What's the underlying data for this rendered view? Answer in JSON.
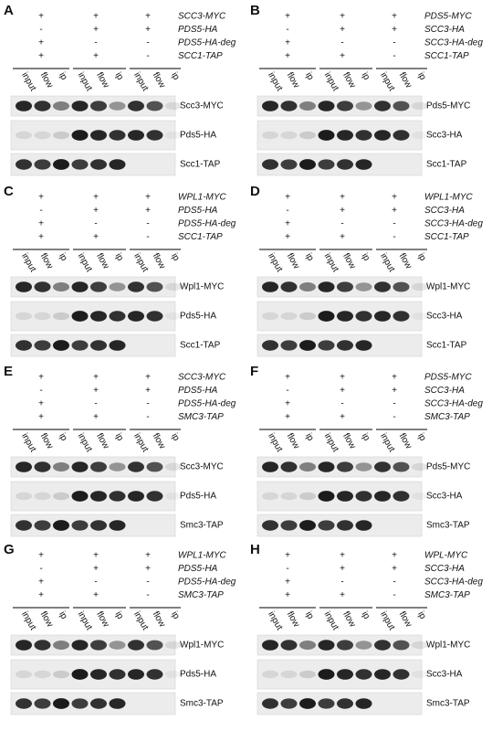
{
  "panels": [
    {
      "letter": "A",
      "rows": [
        {
          "signs": [
            "+",
            "+",
            "+"
          ],
          "label": "SCC3-MYC"
        },
        {
          "signs": [
            "-",
            "+",
            "+"
          ],
          "label": "PDS5-HA"
        },
        {
          "signs": [
            "+",
            "-",
            "-"
          ],
          "label": "PDS5-HA-deg"
        },
        {
          "signs": [
            "+",
            "+",
            "-"
          ],
          "label": "SCC1-TAP"
        }
      ],
      "lanes": [
        "input",
        "flow",
        "ip",
        "input",
        "flow",
        "ip",
        "input",
        "flow",
        "ip"
      ],
      "blots": [
        "Scc3-MYC",
        "Pds5-HA",
        "Scc1-TAP"
      ]
    },
    {
      "letter": "B",
      "rows": [
        {
          "signs": [
            "+",
            "+",
            "+"
          ],
          "label": "PDS5-MYC"
        },
        {
          "signs": [
            "-",
            "+",
            "+"
          ],
          "label": "SCC3-HA"
        },
        {
          "signs": [
            "+",
            "-",
            "-"
          ],
          "label": "SCC3-HA-deg"
        },
        {
          "signs": [
            "+",
            "+",
            "-"
          ],
          "label": "SCC1-TAP"
        }
      ],
      "lanes": [
        "input",
        "flow",
        "ip",
        "input",
        "flow",
        "ip",
        "input",
        "flow",
        "ip"
      ],
      "blots": [
        "Pds5-MYC",
        "Scc3-HA",
        "Scc1-TAP"
      ]
    },
    {
      "letter": "C",
      "rows": [
        {
          "signs": [
            "+",
            "+",
            "+"
          ],
          "label": "WPL1-MYC"
        },
        {
          "signs": [
            "-",
            "+",
            "+"
          ],
          "label": "PDS5-HA"
        },
        {
          "signs": [
            "+",
            "-",
            "-"
          ],
          "label": "PDS5-HA-deg"
        },
        {
          "signs": [
            "+",
            "+",
            "-"
          ],
          "label": "SCC1-TAP"
        }
      ],
      "lanes": [
        "input",
        "flow",
        "ip",
        "input",
        "flow",
        "ip",
        "input",
        "flow",
        "ip"
      ],
      "blots": [
        "Wpl1-MYC",
        "Pds5-HA",
        "Scc1-TAP"
      ]
    },
    {
      "letter": "D",
      "rows": [
        {
          "signs": [
            "+",
            "+",
            "+"
          ],
          "label": "WPL1-MYC"
        },
        {
          "signs": [
            "-",
            "+",
            "+"
          ],
          "label": "SCC3-HA"
        },
        {
          "signs": [
            "+",
            "-",
            "-"
          ],
          "label": "SCC3-HA-deg"
        },
        {
          "signs": [
            "+",
            "+",
            "-"
          ],
          "label": "SCC1-TAP"
        }
      ],
      "lanes": [
        "input",
        "flow",
        "ip",
        "input",
        "flow",
        "ip",
        "input",
        "flow",
        "ip"
      ],
      "blots": [
        "Wpl1-MYC",
        "Scc3-HA",
        "Scc1-TAP"
      ]
    },
    {
      "letter": "E",
      "rows": [
        {
          "signs": [
            "+",
            "+",
            "+"
          ],
          "label": "SCC3-MYC"
        },
        {
          "signs": [
            "-",
            "+",
            "+"
          ],
          "label": "PDS5-HA"
        },
        {
          "signs": [
            "+",
            "-",
            "-"
          ],
          "label": "PDS5-HA-deg"
        },
        {
          "signs": [
            "+",
            "+",
            "-"
          ],
          "label": "SMC3-TAP"
        }
      ],
      "lanes": [
        "input",
        "flow",
        "ip",
        "input",
        "flow",
        "ip",
        "input",
        "flow",
        "ip"
      ],
      "blots": [
        "Scc3-MYC",
        "Pds5-HA",
        "Smc3-TAP"
      ]
    },
    {
      "letter": "F",
      "rows": [
        {
          "signs": [
            "+",
            "+",
            "+"
          ],
          "label": "PDS5-MYC"
        },
        {
          "signs": [
            "-",
            "+",
            "+"
          ],
          "label": "SCC3-HA"
        },
        {
          "signs": [
            "+",
            "-",
            "-"
          ],
          "label": "SCC3-HA-deg"
        },
        {
          "signs": [
            "+",
            "+",
            "-"
          ],
          "label": "SMC3-TAP"
        }
      ],
      "lanes": [
        "input",
        "flow",
        "ip",
        "input",
        "flow",
        "ip",
        "input",
        "flow",
        "ip"
      ],
      "blots": [
        "Pds5-MYC",
        "Scc3-HA",
        "Smc3-TAP"
      ]
    },
    {
      "letter": "G",
      "rows": [
        {
          "signs": [
            "+",
            "+",
            "+"
          ],
          "label": "WPL1-MYC"
        },
        {
          "signs": [
            "-",
            "+",
            "+"
          ],
          "label": "PDS5-HA"
        },
        {
          "signs": [
            "+",
            "-",
            "-"
          ],
          "label": "PDS5-HA-deg"
        },
        {
          "signs": [
            "+",
            "+",
            "-"
          ],
          "label": "SMC3-TAP"
        }
      ],
      "lanes": [
        "input",
        "flow",
        "ip",
        "input",
        "flow",
        "ip",
        "input",
        "flow",
        "ip"
      ],
      "blots": [
        "Wpl1-MYC",
        "Pds5-HA",
        "Smc3-TAP"
      ]
    },
    {
      "letter": "H",
      "rows": [
        {
          "signs": [
            "+",
            "+",
            "+"
          ],
          "label": "WPL-MYC"
        },
        {
          "signs": [
            "-",
            "+",
            "+"
          ],
          "label": "SCC3-HA"
        },
        {
          "signs": [
            "+",
            "-",
            "-"
          ],
          "label": "SCC3-HA-deg"
        },
        {
          "signs": [
            "+",
            "+",
            "-"
          ],
          "label": "SMC3-TAP"
        }
      ],
      "lanes": [
        "input",
        "flow",
        "ip",
        "input",
        "flow",
        "ip",
        "input",
        "flow",
        "ip"
      ],
      "blots": [
        "Wpl1-MYC",
        "Scc3-HA",
        "Smc3-TAP"
      ]
    }
  ]
}
